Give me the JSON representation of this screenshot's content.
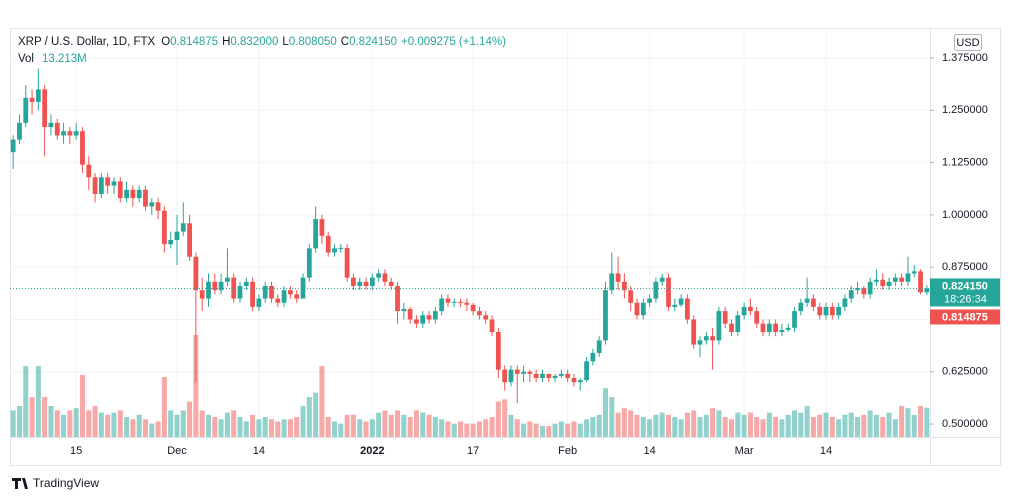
{
  "header": {
    "symbol": "XRP / U.S. Dollar, 1D, FTX",
    "fields": [
      {
        "key": "O",
        "value": "0.814875"
      },
      {
        "key": "H",
        "value": "0.832000"
      },
      {
        "key": "L",
        "value": "0.808050"
      },
      {
        "key": "C",
        "value": "0.824150"
      }
    ],
    "change": "+0.009275 (+1.14%)",
    "vol_label": "Vol",
    "vol_value": "13.213M"
  },
  "currency": "USD",
  "brand": "TradingView",
  "chart_data": {
    "type": "candlestick",
    "categories": [
      null,
      null,
      null,
      null,
      null,
      null,
      null,
      null,
      null,
      null,
      "15",
      null,
      null,
      null,
      null,
      null,
      null,
      null,
      null,
      null,
      null,
      null,
      null,
      null,
      null,
      null,
      "Dec",
      null,
      null,
      null,
      null,
      null,
      null,
      null,
      null,
      null,
      null,
      null,
      null,
      "14",
      null,
      null,
      null,
      null,
      null,
      null,
      null,
      null,
      null,
      null,
      null,
      null,
      null,
      null,
      null,
      null,
      null,
      "2022",
      null,
      null,
      null,
      null,
      null,
      null,
      null,
      null,
      null,
      null,
      null,
      null,
      null,
      null,
      null,
      "17",
      null,
      null,
      null,
      null,
      null,
      null,
      null,
      null,
      null,
      null,
      null,
      null,
      null,
      null,
      "Feb",
      null,
      null,
      null,
      null,
      null,
      null,
      null,
      null,
      null,
      null,
      null,
      null,
      "14",
      null,
      null,
      null,
      null,
      null,
      null,
      null,
      null,
      null,
      null,
      null,
      null,
      null,
      null,
      "Mar",
      null,
      null,
      null,
      null,
      null,
      null,
      null,
      null,
      null,
      null,
      null,
      null,
      "14",
      null,
      null,
      null,
      null,
      null,
      null,
      null,
      null,
      null,
      null,
      null,
      null,
      null,
      null,
      null,
      null
    ],
    "open": [
      1.15,
      1.18,
      1.22,
      1.28,
      1.27,
      1.3,
      1.21,
      1.22,
      1.19,
      1.2,
      1.19,
      1.2,
      1.12,
      1.09,
      1.05,
      1.09,
      1.07,
      1.08,
      1.04,
      1.06,
      1.04,
      1.06,
      1.02,
      1.03,
      1.01,
      0.93,
      0.94,
      0.96,
      0.98,
      0.9,
      0.82,
      0.8,
      0.84,
      0.82,
      0.84,
      0.85,
      0.8,
      0.83,
      0.84,
      0.78,
      0.8,
      0.83,
      0.8,
      0.79,
      0.82,
      0.81,
      0.8,
      0.85,
      0.92,
      0.99,
      0.95,
      0.91,
      0.92,
      0.921,
      0.85,
      0.83,
      0.84,
      0.83,
      0.85,
      0.86,
      0.84,
      0.83,
      0.77,
      0.775,
      0.75,
      0.74,
      0.76,
      0.75,
      0.77,
      0.8,
      0.79,
      0.792,
      0.79,
      0.785,
      0.77,
      0.76,
      0.75,
      0.72,
      0.63,
      0.6,
      0.63,
      0.62,
      0.625,
      0.62,
      0.61,
      0.62,
      0.61,
      0.615,
      0.62,
      0.61,
      0.6,
      0.605,
      0.65,
      0.67,
      0.7,
      0.82,
      0.86,
      0.84,
      0.82,
      0.79,
      0.76,
      0.79,
      0.8,
      0.84,
      0.85,
      0.78,
      0.785,
      0.8,
      0.75,
      0.69,
      0.7,
      0.71,
      0.7,
      0.77,
      0.74,
      0.72,
      0.76,
      0.78,
      0.77,
      0.74,
      0.72,
      0.74,
      0.72,
      0.725,
      0.73,
      0.77,
      0.79,
      0.8,
      0.78,
      0.76,
      0.78,
      0.76,
      0.78,
      0.8,
      0.82,
      0.825,
      0.81,
      0.84,
      0.845,
      0.83,
      0.84,
      0.85,
      0.84,
      0.86,
      0.865,
      0.814875
    ],
    "high": [
      1.19,
      1.24,
      1.31,
      1.3,
      1.35,
      1.31,
      1.24,
      1.23,
      1.22,
      1.21,
      1.22,
      1.21,
      1.14,
      1.1,
      1.1,
      1.1,
      1.09,
      1.09,
      1.08,
      1.07,
      1.07,
      1.07,
      1.04,
      1.04,
      1.02,
      0.96,
      1.0,
      1.03,
      1.0,
      0.91,
      0.85,
      0.86,
      0.86,
      0.86,
      0.92,
      0.86,
      0.84,
      0.85,
      0.85,
      0.81,
      0.84,
      0.84,
      0.81,
      0.83,
      0.83,
      0.82,
      0.86,
      0.93,
      1.02,
      1.0,
      0.96,
      0.93,
      0.93,
      0.93,
      0.86,
      0.85,
      0.85,
      0.86,
      0.87,
      0.87,
      0.85,
      0.84,
      0.79,
      0.78,
      0.76,
      0.77,
      0.77,
      0.78,
      0.81,
      0.81,
      0.8,
      0.8,
      0.8,
      0.79,
      0.78,
      0.77,
      0.76,
      0.73,
      0.64,
      0.64,
      0.64,
      0.64,
      0.63,
      0.63,
      0.63,
      0.62,
      0.62,
      0.63,
      0.63,
      0.62,
      0.61,
      0.66,
      0.68,
      0.71,
      0.84,
      0.91,
      0.9,
      0.86,
      0.83,
      0.8,
      0.8,
      0.81,
      0.85,
      0.86,
      0.86,
      0.8,
      0.81,
      0.81,
      0.76,
      0.71,
      0.72,
      0.73,
      0.78,
      0.78,
      0.75,
      0.77,
      0.79,
      0.8,
      0.78,
      0.75,
      0.75,
      0.75,
      0.74,
      0.74,
      0.78,
      0.8,
      0.85,
      0.81,
      0.79,
      0.79,
      0.79,
      0.79,
      0.81,
      0.83,
      0.84,
      0.83,
      0.85,
      0.87,
      0.86,
      0.85,
      0.86,
      0.86,
      0.9,
      0.88,
      0.87,
      0.832
    ],
    "low": [
      1.11,
      1.17,
      1.21,
      1.24,
      1.25,
      1.14,
      1.19,
      1.18,
      1.17,
      1.17,
      1.18,
      1.1,
      1.06,
      1.03,
      1.04,
      1.05,
      1.05,
      1.03,
      1.03,
      1.02,
      1.03,
      1.01,
      1.0,
      0.99,
      0.91,
      0.92,
      0.88,
      0.95,
      0.89,
      0.6,
      0.77,
      0.78,
      0.81,
      0.81,
      0.83,
      0.79,
      0.79,
      0.82,
      0.77,
      0.77,
      0.79,
      0.79,
      0.78,
      0.78,
      0.8,
      0.79,
      0.8,
      0.84,
      0.91,
      0.93,
      0.9,
      0.9,
      0.91,
      0.84,
      0.82,
      0.82,
      0.82,
      0.82,
      0.84,
      0.83,
      0.82,
      0.74,
      0.75,
      0.74,
      0.73,
      0.73,
      0.74,
      0.74,
      0.76,
      0.78,
      0.78,
      0.78,
      0.77,
      0.76,
      0.75,
      0.74,
      0.71,
      0.61,
      0.58,
      0.59,
      0.55,
      0.6,
      0.6,
      0.6,
      0.6,
      0.6,
      0.6,
      0.61,
      0.6,
      0.59,
      0.58,
      0.6,
      0.64,
      0.66,
      0.69,
      0.81,
      0.82,
      0.8,
      0.77,
      0.75,
      0.75,
      0.78,
      0.79,
      0.83,
      0.77,
      0.77,
      0.78,
      0.74,
      0.68,
      0.66,
      0.69,
      0.63,
      0.69,
      0.73,
      0.71,
      0.71,
      0.75,
      0.76,
      0.73,
      0.71,
      0.71,
      0.71,
      0.71,
      0.72,
      0.72,
      0.76,
      0.78,
      0.77,
      0.75,
      0.75,
      0.75,
      0.75,
      0.77,
      0.79,
      0.81,
      0.8,
      0.8,
      0.83,
      0.82,
      0.82,
      0.83,
      0.83,
      0.83,
      0.85,
      0.81,
      0.80805
    ],
    "close": [
      1.18,
      1.22,
      1.28,
      1.27,
      1.3,
      1.21,
      1.22,
      1.19,
      1.2,
      1.19,
      1.2,
      1.12,
      1.09,
      1.05,
      1.09,
      1.07,
      1.08,
      1.04,
      1.06,
      1.04,
      1.06,
      1.02,
      1.03,
      1.01,
      0.93,
      0.94,
      0.96,
      0.98,
      0.9,
      0.82,
      0.8,
      0.84,
      0.82,
      0.84,
      0.85,
      0.8,
      0.83,
      0.84,
      0.78,
      0.8,
      0.83,
      0.8,
      0.79,
      0.82,
      0.81,
      0.8,
      0.85,
      0.92,
      0.99,
      0.95,
      0.91,
      0.92,
      0.921,
      0.85,
      0.83,
      0.84,
      0.83,
      0.85,
      0.86,
      0.84,
      0.83,
      0.77,
      0.775,
      0.75,
      0.74,
      0.76,
      0.75,
      0.77,
      0.8,
      0.79,
      0.792,
      0.79,
      0.785,
      0.77,
      0.76,
      0.75,
      0.72,
      0.63,
      0.6,
      0.63,
      0.62,
      0.625,
      0.62,
      0.61,
      0.62,
      0.61,
      0.615,
      0.62,
      0.61,
      0.6,
      0.605,
      0.65,
      0.67,
      0.7,
      0.82,
      0.86,
      0.84,
      0.82,
      0.79,
      0.76,
      0.79,
      0.8,
      0.84,
      0.85,
      0.78,
      0.785,
      0.8,
      0.75,
      0.69,
      0.7,
      0.71,
      0.7,
      0.77,
      0.74,
      0.72,
      0.76,
      0.78,
      0.77,
      0.74,
      0.72,
      0.74,
      0.72,
      0.725,
      0.73,
      0.77,
      0.79,
      0.8,
      0.78,
      0.76,
      0.78,
      0.76,
      0.78,
      0.8,
      0.82,
      0.825,
      0.81,
      0.84,
      0.845,
      0.83,
      0.84,
      0.85,
      0.84,
      0.86,
      0.865,
      0.815,
      0.82415
    ],
    "volume": [
      12,
      14,
      32,
      18,
      32,
      18,
      14,
      12,
      10,
      12,
      13,
      28,
      12,
      14,
      11,
      10,
      11,
      12,
      9,
      8,
      10,
      8,
      6,
      7,
      27,
      12,
      10,
      12,
      16,
      46,
      12,
      10,
      9,
      8,
      11,
      12,
      9,
      7,
      10,
      8,
      9,
      8,
      7,
      8,
      8,
      9,
      14,
      18,
      20,
      32,
      9,
      7,
      6,
      10,
      10,
      8,
      7,
      8,
      11,
      12,
      10,
      12,
      10,
      9,
      12,
      11,
      10,
      9,
      8,
      7,
      6,
      7,
      6,
      6,
      7,
      8,
      9,
      16,
      17,
      10,
      8,
      6,
      7,
      6,
      5,
      5,
      6,
      7,
      6,
      7,
      6,
      8,
      9,
      10,
      22,
      18,
      11,
      13,
      12,
      10,
      9,
      8,
      10,
      11,
      10,
      9,
      8,
      11,
      12,
      9,
      10,
      13,
      12,
      9,
      8,
      11,
      10,
      11,
      9,
      8,
      11,
      9,
      8,
      10,
      12,
      11,
      14,
      9,
      10,
      11,
      9,
      8,
      10,
      11,
      9,
      10,
      12,
      10,
      9,
      11,
      8,
      14,
      13,
      10,
      14,
      13.213
    ],
    "up_color": "#26a69a",
    "down_color": "#ef5350",
    "ylim": [
      0.469,
      1.442
    ],
    "yticks": [
      {
        "value": 0.5,
        "label": "0.500000"
      },
      {
        "value": 0.625,
        "label": "0.625000"
      },
      {
        "value": 0.75,
        "label": "0.750000"
      },
      {
        "value": 0.875,
        "label": "0.875000"
      },
      {
        "value": 1.0,
        "label": "1.000000"
      },
      {
        "value": 1.125,
        "label": "1.125000"
      },
      {
        "value": 1.25,
        "label": "1.250000"
      },
      {
        "value": 1.375,
        "label": "1.375000"
      }
    ],
    "last_price": {
      "value": 0.82415,
      "label": "0.824150"
    },
    "countdown": "18:26:34",
    "open_price": {
      "value": 0.814875,
      "label": "0.814875"
    },
    "grid": true
  }
}
